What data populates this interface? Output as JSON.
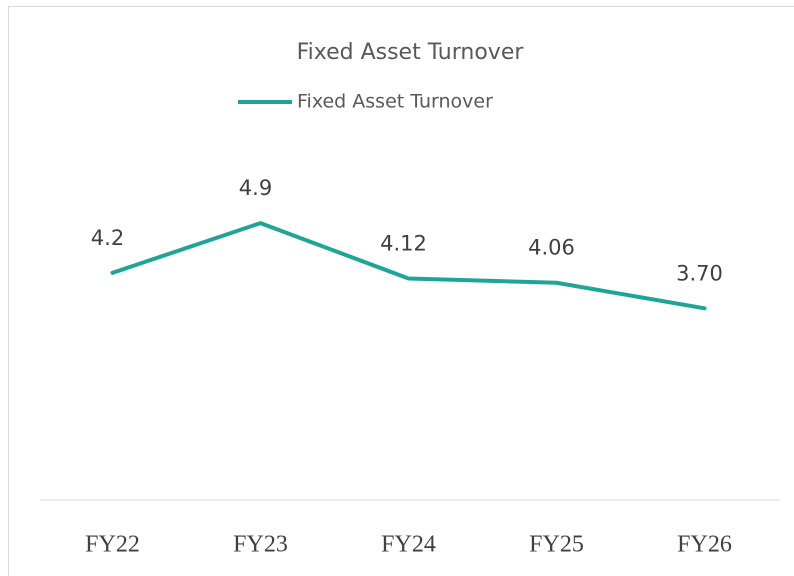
{
  "chart_data": {
    "type": "line",
    "title": "Fixed Asset Turnover",
    "categories": [
      "FY22",
      "FY23",
      "FY24",
      "FY25",
      "FY26"
    ],
    "series": [
      {
        "name": "Fixed Asset Turnover",
        "color": "#1fa596",
        "values": [
          4.2,
          4.9,
          4.12,
          4.06,
          3.7
        ],
        "value_labels": [
          "4.2",
          "4.9",
          "4.12",
          "4.06",
          "3.70"
        ]
      }
    ],
    "ylim": [
      1,
      6
    ],
    "legend": "top"
  }
}
